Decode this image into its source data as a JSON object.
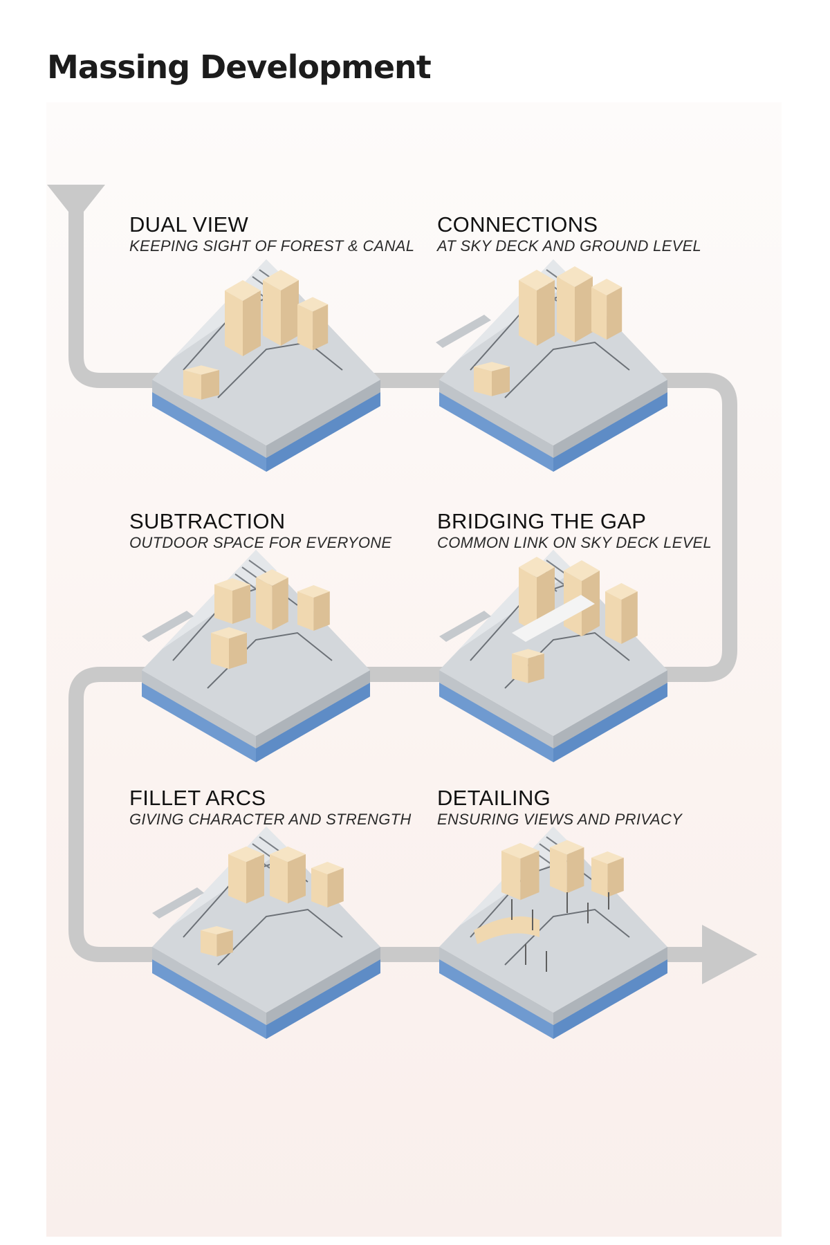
{
  "title": "Massing Development",
  "colors": {
    "flow": "#c9c9c9",
    "water": "#6f9ad0",
    "site": "#cfd3d7",
    "massing": "#f0d8b0"
  },
  "steps": [
    {
      "title": "DUAL VIEW",
      "subtitle": "KEEPING SIGHT OF FOREST & CANAL"
    },
    {
      "title": "CONNECTIONS",
      "subtitle": "AT SKY DECK AND GROUND LEVEL"
    },
    {
      "title": "SUBTRACTION",
      "subtitle": "OUTDOOR SPACE FOR EVERYONE"
    },
    {
      "title": "BRIDGING THE GAP",
      "subtitle": "COMMON LINK ON SKY DECK LEVEL"
    },
    {
      "title": "FILLET ARCS",
      "subtitle": "GIVING CHARACTER AND STRENGTH"
    },
    {
      "title": "DETAILING",
      "subtitle": "ENSURING VIEWS AND PRIVACY"
    }
  ]
}
